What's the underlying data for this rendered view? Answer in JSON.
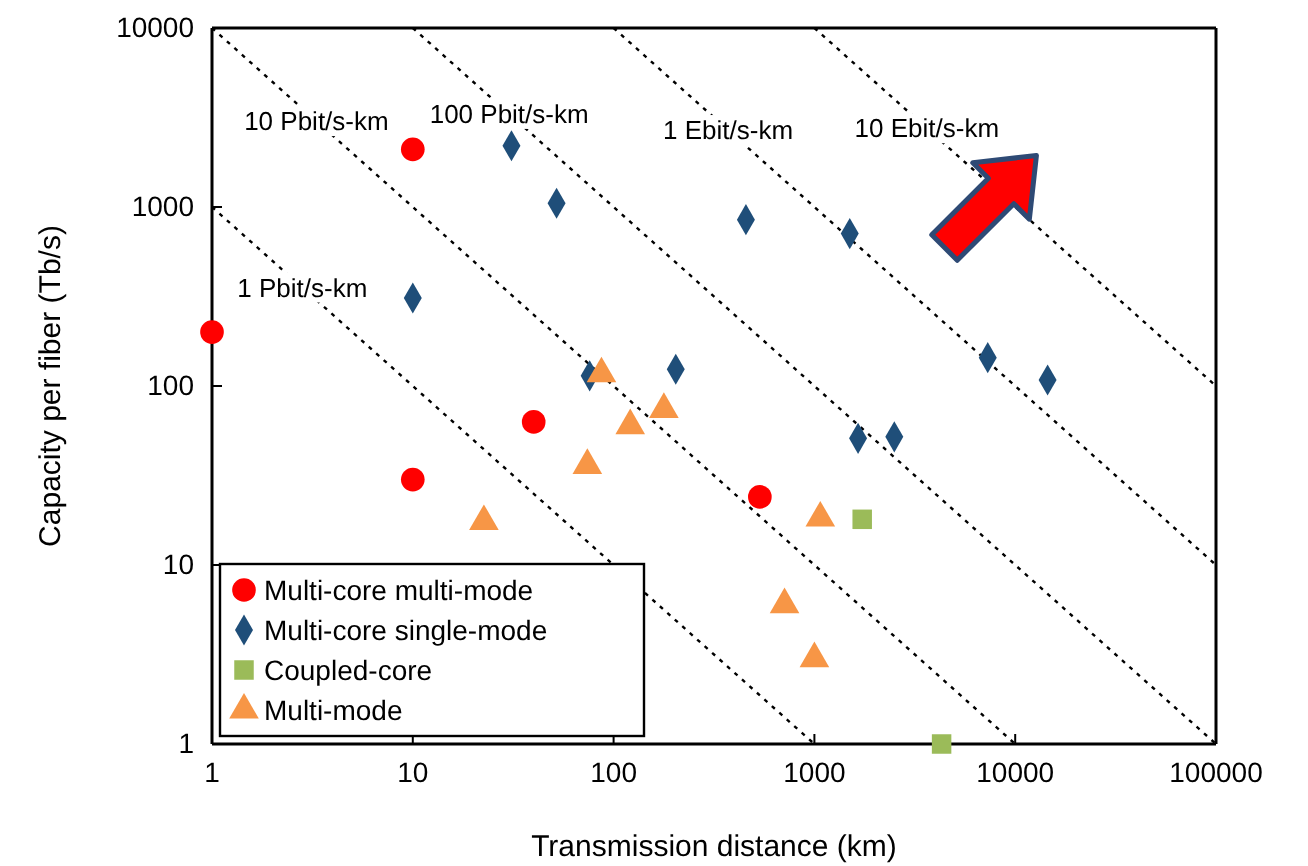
{
  "chart_data": {
    "type": "scatter",
    "xlabel": "Transmission distance (km)",
    "ylabel": "Capacity per fiber (Tb/s)",
    "log": "xy",
    "xlim": [
      1,
      100000
    ],
    "ylim": [
      1,
      10000
    ],
    "xticks": [
      1,
      10,
      100,
      1000,
      10000,
      100000
    ],
    "yticks": [
      1,
      10,
      100,
      1000,
      10000
    ],
    "grid": false,
    "legend": "bottom left",
    "series": [
      {
        "name": "Multi-core multi-mode",
        "color": "#ff0000",
        "marker": "circle",
        "x": [
          1,
          10,
          10,
          40,
          535
        ],
        "values": [
          200,
          2100,
          30,
          63,
          24
        ]
      },
      {
        "name": "Multi-core single-mode",
        "color": "#1f4e79",
        "marker": "diamond",
        "x": [
          31,
          52,
          10,
          76,
          204,
          456,
          1500,
          7300,
          14500,
          1650,
          2500
        ],
        "values": [
          2200,
          1050,
          310,
          114,
          124,
          850,
          710,
          144,
          108,
          51,
          52
        ]
      },
      {
        "name": "Coupled-core",
        "color": "#9bbb59",
        "marker": "square",
        "x": [
          1730,
          4300
        ],
        "values": [
          18,
          1
        ]
      },
      {
        "name": "Multi-mode",
        "color": "#f79646",
        "marker": "triangle",
        "x": [
          87,
          121,
          74,
          178,
          22.6,
          1070,
          710,
          1000
        ],
        "values": [
          117,
          60,
          36,
          74,
          17.5,
          18.3,
          6,
          3
        ]
      },
      {
        "name": "1 Pbit/s-km",
        "type": "line",
        "color": "#000000",
        "line_style": "dotted",
        "x": [
          1,
          1000
        ],
        "values": [
          1000,
          1
        ]
      },
      {
        "name": "10 Pbit/s-km",
        "type": "line",
        "color": "#000000",
        "line_style": "dotted",
        "x": [
          1,
          10000
        ],
        "values": [
          10000,
          1
        ]
      },
      {
        "name": "100 Pbit/s-km",
        "type": "line",
        "color": "#000000",
        "line_style": "dotted",
        "x": [
          10,
          100000
        ],
        "values": [
          10000,
          1
        ]
      },
      {
        "name": "1 Ebit/s-km",
        "type": "line",
        "color": "#000000",
        "line_style": "dotted",
        "x": [
          100,
          100000
        ],
        "values": [
          10000,
          10
        ]
      },
      {
        "name": "10 Ebit/s-km",
        "type": "line",
        "color": "#000000",
        "line_style": "dotted",
        "x": [
          1000,
          100000
        ],
        "values": [
          10000,
          100
        ]
      }
    ]
  }
}
